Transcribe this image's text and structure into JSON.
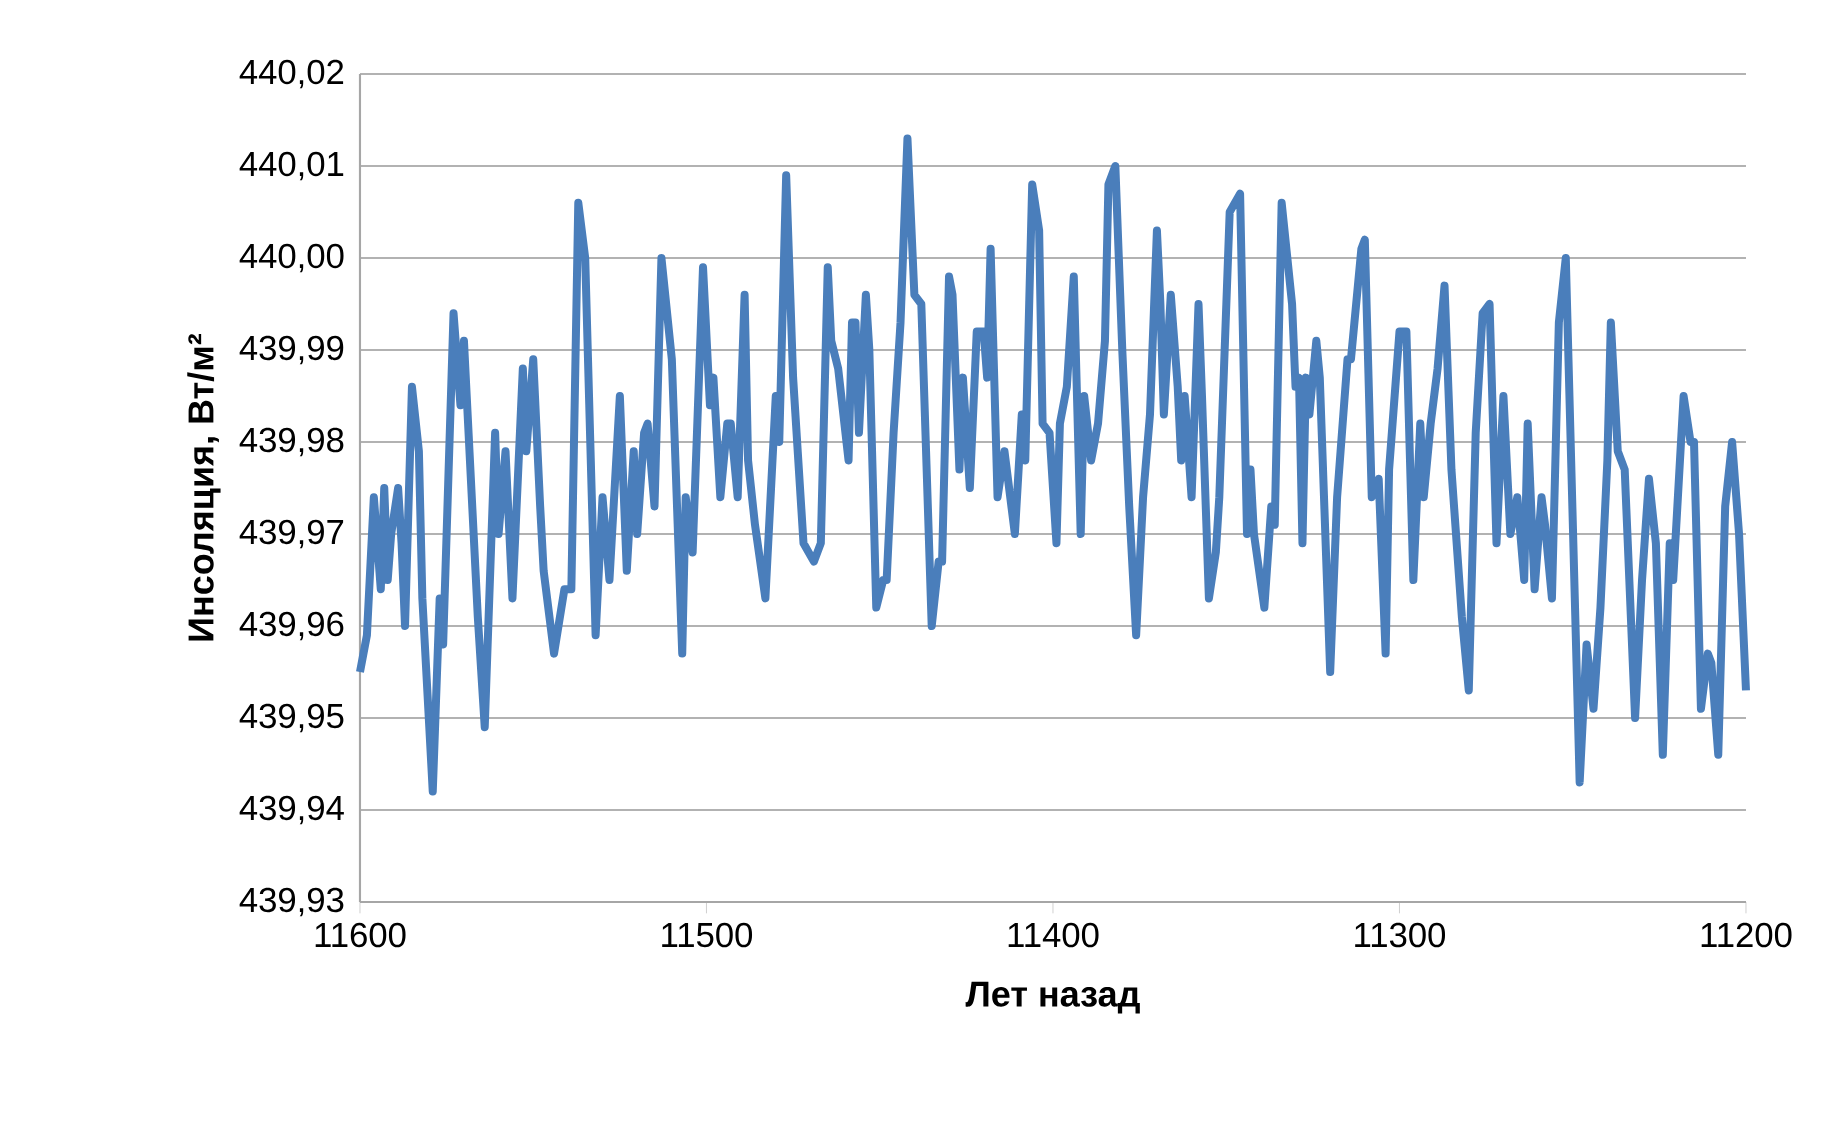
{
  "chart_data": {
    "type": "line",
    "xlabel": "Лет назад",
    "ylabel": "Инсоляция, Вт/м²",
    "color": "#4a7ebb",
    "line_style": "solid",
    "grid": "y",
    "xlim": [
      11600,
      11200
    ],
    "xticks": [
      11600,
      11500,
      11400,
      11300,
      11200
    ],
    "ylim": [
      439.93,
      440.02
    ],
    "yticks": [
      {
        "value": 439.93,
        "label": "439,93"
      },
      {
        "value": 439.94,
        "label": "439,94"
      },
      {
        "value": 439.95,
        "label": "439,95"
      },
      {
        "value": 439.96,
        "label": "439,96"
      },
      {
        "value": 439.97,
        "label": "439,97"
      },
      {
        "value": 439.98,
        "label": "439,98"
      },
      {
        "value": 439.99,
        "label": "439,99"
      },
      {
        "value": 440.0,
        "label": "440,00"
      },
      {
        "value": 440.01,
        "label": "440,01"
      },
      {
        "value": 440.02,
        "label": "440,02"
      }
    ],
    "x": [
      11600,
      11598,
      11596,
      11594,
      11593,
      11592,
      11591,
      11589,
      11588,
      11587,
      11585,
      11583,
      11582,
      11579,
      11577,
      11576,
      11573,
      11571,
      11570,
      11566,
      11564,
      11561,
      11560,
      11558,
      11556,
      11553,
      11552,
      11550,
      11548,
      11547,
      11544,
      11541,
      11539,
      11537,
      11535,
      11532,
      11530,
      11528,
      11525,
      11523,
      11521,
      11520,
      11518,
      11517,
      11515,
      11513,
      11510,
      11507,
      11506,
      11504,
      11501,
      11499,
      11498,
      11496,
      11494,
      11493,
      11491,
      11489,
      11488,
      11486,
      11483,
      11480,
      11479,
      11477,
      11475,
      11472,
      11469,
      11467,
      11465,
      11464,
      11462,
      11459,
      11458,
      11457,
      11456,
      11454,
      11453,
      11451,
      11449,
      11448,
      11446,
      11444,
      11442,
      11440,
      11438,
      11435,
      11433,
      11432,
      11430,
      11429,
      11427,
      11426,
      11424,
      11422,
      11420,
      11419,
      11418,
      11416,
      11414,
      11413,
      11411,
      11409,
      11408,
      11406,
      11404,
      11403,
      11401,
      11399,
      11398,
      11396,
      11394,
      11392,
      11391,
      11389,
      11387,
      11385,
      11384,
      11382,
      11380,
      11378,
      11376,
      11374,
      11372,
      11370,
      11369,
      11368,
      11366,
      11364,
      11363,
      11362,
      11360,
      11358,
      11357,
      11355,
      11353,
      11352,
      11349,
      11346,
      11344,
      11343,
      11342,
      11339,
      11337,
      11336,
      11334,
      11331,
      11330,
      11329,
      11328,
      11327,
      11326,
      11324,
      11323,
      11320,
      11318,
      11317,
      11315,
      11314,
      11311,
      11310,
      11308,
      11306,
      11304,
      11303,
      11300,
      11298,
      11296,
      11294,
      11293,
      11291,
      11289,
      11287,
      11285,
      11282,
      11280,
      11278,
      11276,
      11274,
      11272,
      11270,
      11268,
      11266,
      11264,
      11263,
      11261,
      11259,
      11258,
      11256,
      11254,
      11252,
      11248,
      11246,
      11244,
      11242,
      11240,
      11239,
      11237,
      11235,
      11232,
      11230,
      11228,
      11226,
      11224,
      11222,
      11221,
      11218,
      11216,
      11215,
      11213,
      11211,
      11210,
      11208,
      11206,
      11204,
      11202,
      11200
    ],
    "values": [
      439.955,
      439.959,
      439.974,
      439.964,
      439.975,
      439.965,
      439.97,
      439.975,
      439.969,
      439.96,
      439.986,
      439.979,
      439.963,
      439.942,
      439.963,
      439.958,
      439.994,
      439.984,
      439.991,
      439.961,
      439.949,
      439.981,
      439.97,
      439.979,
      439.963,
      439.988,
      439.979,
      439.989,
      439.973,
      439.966,
      439.957,
      439.964,
      439.964,
      440.006,
      440.0,
      439.959,
      439.974,
      439.965,
      439.985,
      439.966,
      439.979,
      439.97,
      439.981,
      439.982,
      439.973,
      440.0,
      439.989,
      439.957,
      439.974,
      439.968,
      439.999,
      439.984,
      439.987,
      439.974,
      439.982,
      439.982,
      439.974,
      439.996,
      439.978,
      439.971,
      439.963,
      439.985,
      439.98,
      440.009,
      439.987,
      439.969,
      439.967,
      439.969,
      439.999,
      439.991,
      439.988,
      439.978,
      439.993,
      439.993,
      439.981,
      439.996,
      439.99,
      439.962,
      439.965,
      439.965,
      439.981,
      439.993,
      440.013,
      439.996,
      439.995,
      439.96,
      439.967,
      439.967,
      439.998,
      439.996,
      439.977,
      439.987,
      439.975,
      439.992,
      439.992,
      439.987,
      440.001,
      439.974,
      439.979,
      439.976,
      439.97,
      439.983,
      439.978,
      440.008,
      440.003,
      439.982,
      439.981,
      439.969,
      439.982,
      439.986,
      439.998,
      439.97,
      439.985,
      439.978,
      439.982,
      439.991,
      440.008,
      440.01,
      439.99,
      439.973,
      439.959,
      439.974,
      439.983,
      440.003,
      439.995,
      439.983,
      439.996,
      439.986,
      439.978,
      439.985,
      439.974,
      439.995,
      439.985,
      439.963,
      439.968,
      439.974,
      440.005,
      440.007,
      439.97,
      439.977,
      439.97,
      439.962,
      439.973,
      439.971,
      440.006,
      439.995,
      439.986,
      439.987,
      439.969,
      439.987,
      439.983,
      439.991,
      439.987,
      439.955,
      439.974,
      439.979,
      439.989,
      439.989,
      440.001,
      440.002,
      439.974,
      439.976,
      439.957,
      439.977,
      439.992,
      439.992,
      439.965,
      439.982,
      439.974,
      439.982,
      439.988,
      439.997,
      439.977,
      439.961,
      439.953,
      439.981,
      439.994,
      439.995,
      439.969,
      439.985,
      439.97,
      439.974,
      439.965,
      439.982,
      439.964,
      439.974,
      439.971,
      439.963,
      439.993,
      440.0,
      439.943,
      439.958,
      439.951,
      439.962,
      439.978,
      439.993,
      439.979,
      439.977,
      439.95,
      439.965,
      439.976,
      439.969,
      439.946,
      439.969,
      439.965,
      439.985,
      439.98,
      439.98,
      439.951,
      439.957,
      439.956,
      439.946,
      439.973,
      439.98,
      439.97,
      439.953
    ]
  }
}
